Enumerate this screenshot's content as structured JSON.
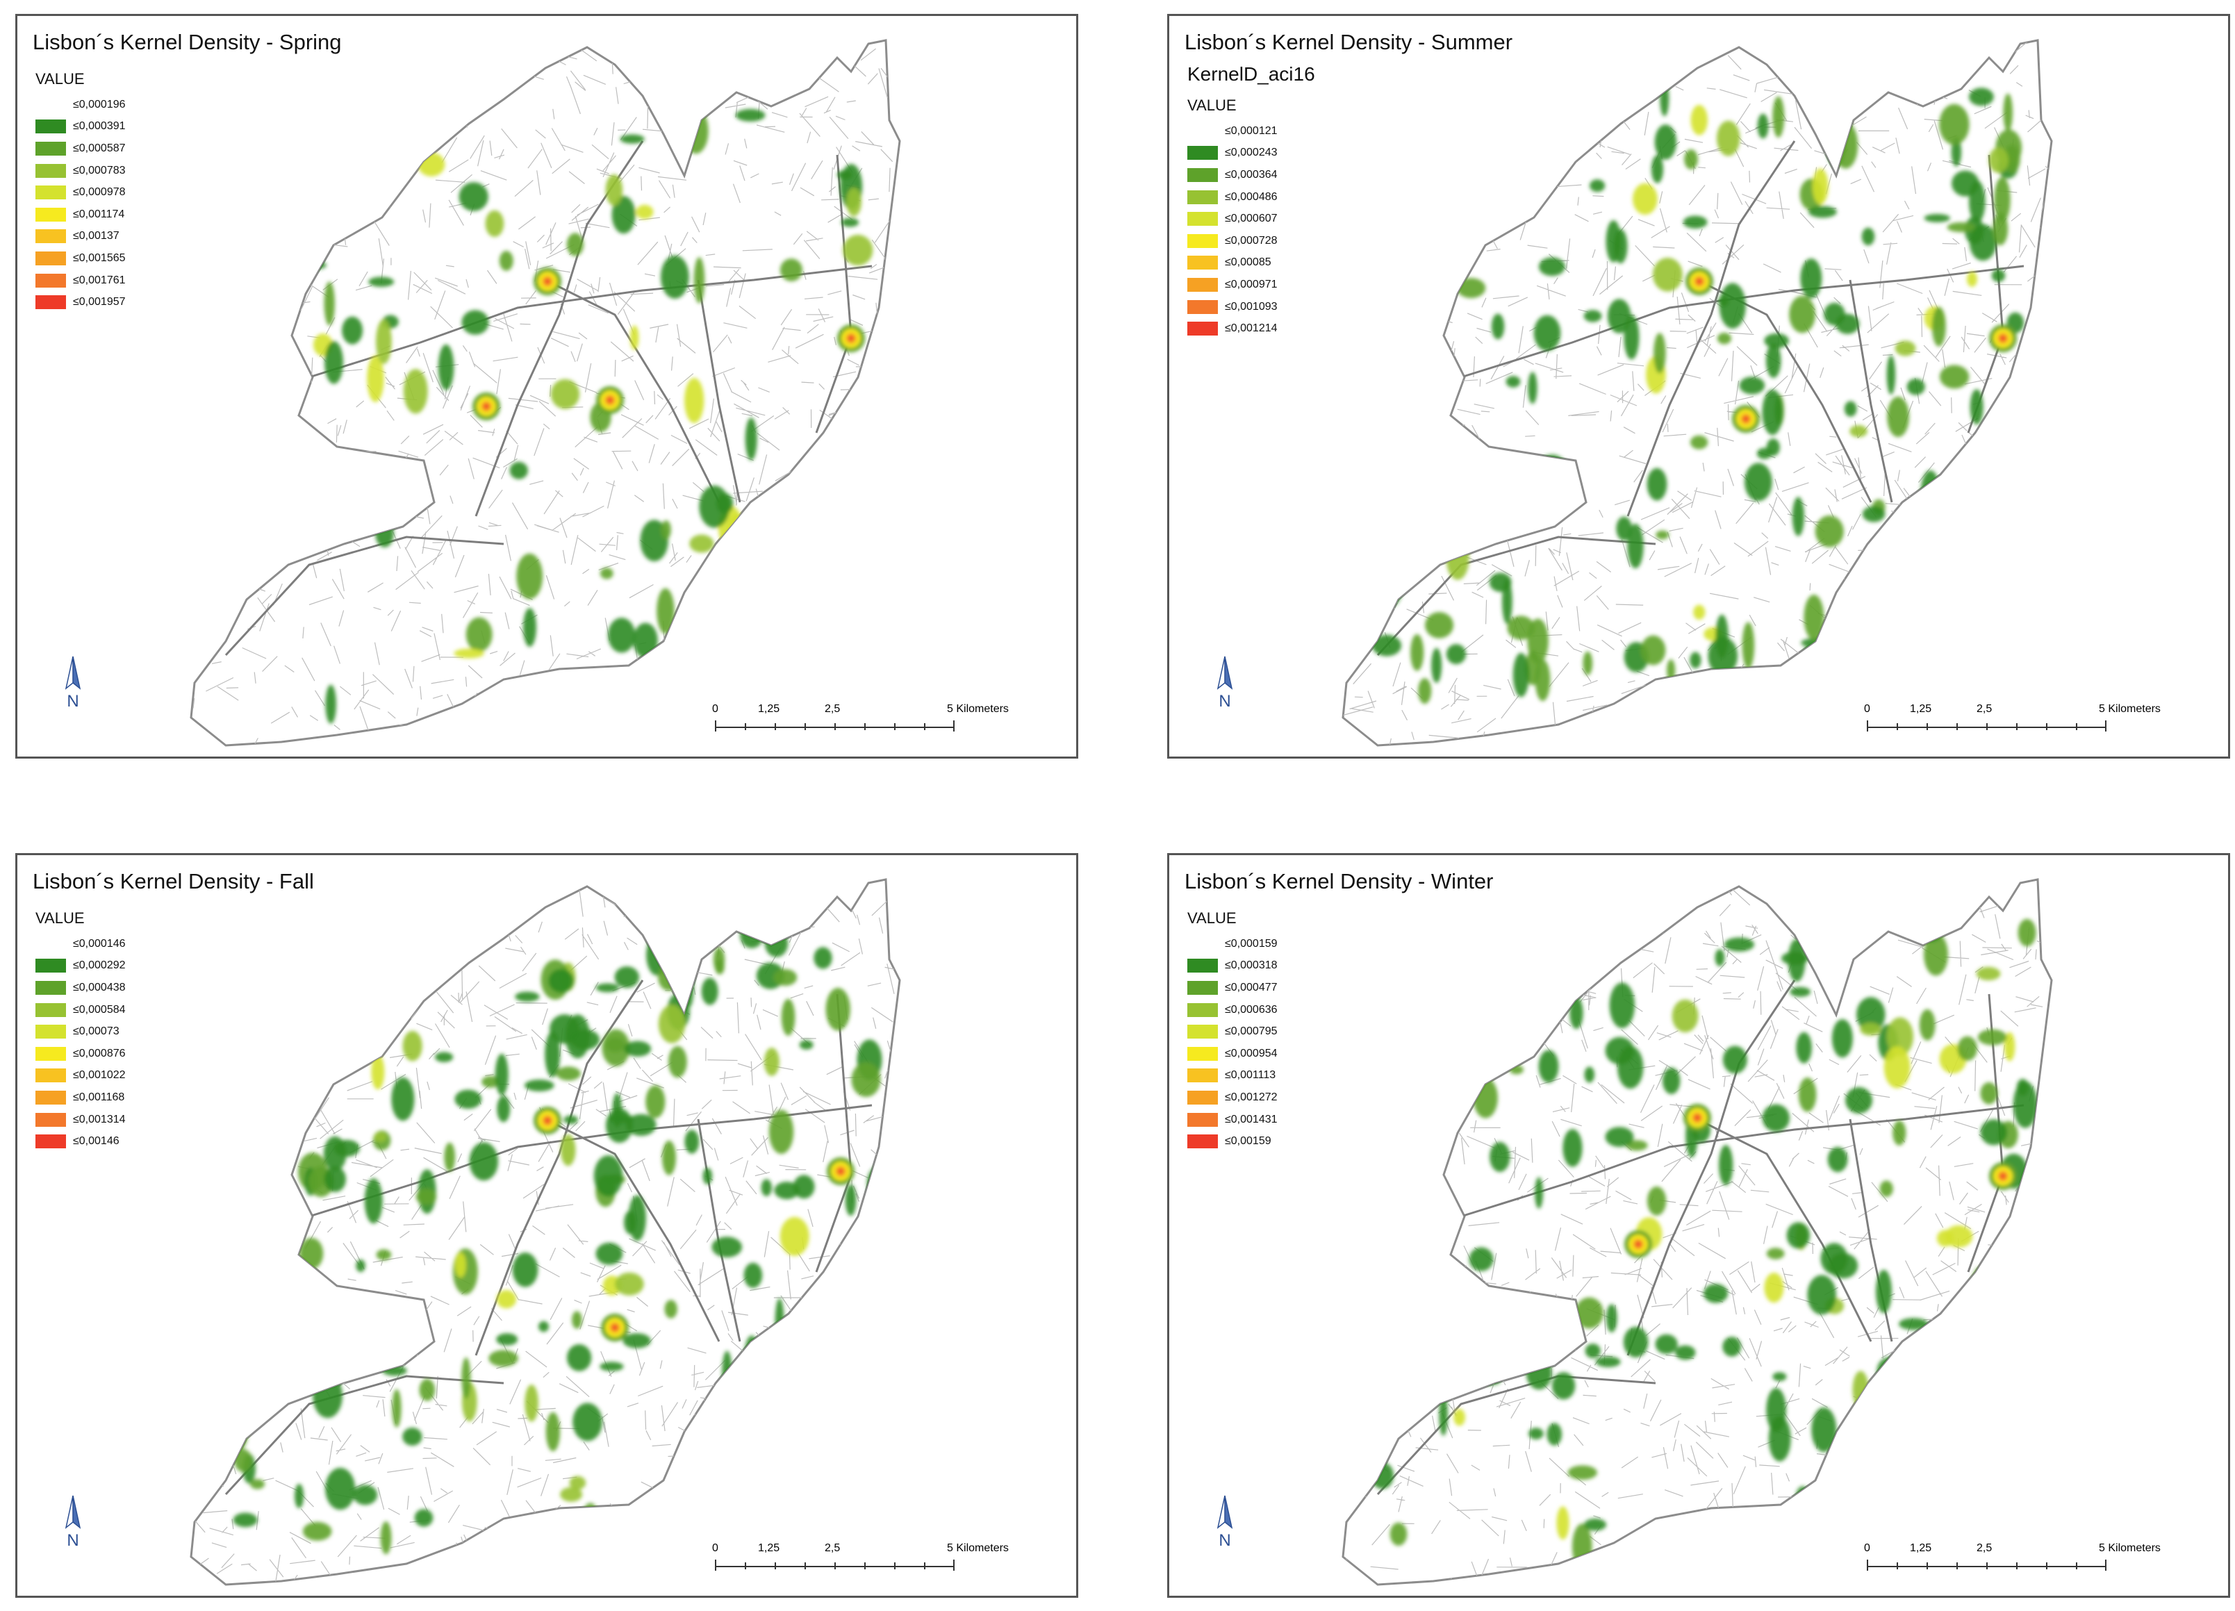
{
  "figure": {
    "panels": [
      {
        "title": "Lisbon´s Kernel Density - Spring",
        "subtitle": "",
        "legend_field": "VALUE",
        "classes": [
          "≤0,000196",
          "≤0,000391",
          "≤0,000587",
          "≤0,000783",
          "≤0,000978",
          "≤0,001174",
          "≤0,00137",
          "≤0,001565",
          "≤0,001761",
          "≤0,001957"
        ],
        "scalebar": {
          "ticks": [
            "0",
            "1,25",
            "2,5",
            "5 Kilometers"
          ]
        },
        "north_label": "N"
      },
      {
        "title": "Lisbon´s Kernel Density - Summer",
        "subtitle": "KernelD_aci16",
        "legend_field": "VALUE",
        "classes": [
          "≤0,000121",
          "≤0,000243",
          "≤0,000364",
          "≤0,000486",
          "≤0,000607",
          "≤0,000728",
          "≤0,00085",
          "≤0,000971",
          "≤0,001093",
          "≤0,001214"
        ],
        "scalebar": {
          "ticks": [
            "0",
            "1,25",
            "2,5",
            "5 Kilometers"
          ]
        },
        "north_label": "N"
      },
      {
        "title": "Lisbon´s Kernel Density - Fall",
        "subtitle": "",
        "legend_field": "VALUE",
        "classes": [
          "≤0,000146",
          "≤0,000292",
          "≤0,000438",
          "≤0,000584",
          "≤0,00073",
          "≤0,000876",
          "≤0,001022",
          "≤0,001168",
          "≤0,001314",
          "≤0,00146"
        ],
        "scalebar": {
          "ticks": [
            "0",
            "1,25",
            "2,5",
            "5 Kilometers"
          ]
        },
        "north_label": "N"
      },
      {
        "title": "Lisbon´s Kernel Density - Winter",
        "subtitle": "",
        "legend_field": "VALUE",
        "classes": [
          "≤0,000159",
          "≤0,000318",
          "≤0,000477",
          "≤0,000636",
          "≤0,000795",
          "≤0,000954",
          "≤0,001113",
          "≤0,001272",
          "≤0,001431",
          "≤0,00159"
        ],
        "scalebar": {
          "ticks": [
            "0",
            "1,25",
            "2,5",
            "5 Kilometers"
          ]
        },
        "north_label": "N"
      }
    ],
    "class_colors": [
      "#ffffff",
      "#2f8b22",
      "#5ea22a",
      "#97c232",
      "#d4e22e",
      "#f6ea1f",
      "#f8c221",
      "#f6a123",
      "#f3782b",
      "#ee3b28"
    ],
    "map_colors": {
      "street": "#bdbdbd",
      "boundary": "#8c8c8c"
    }
  }
}
